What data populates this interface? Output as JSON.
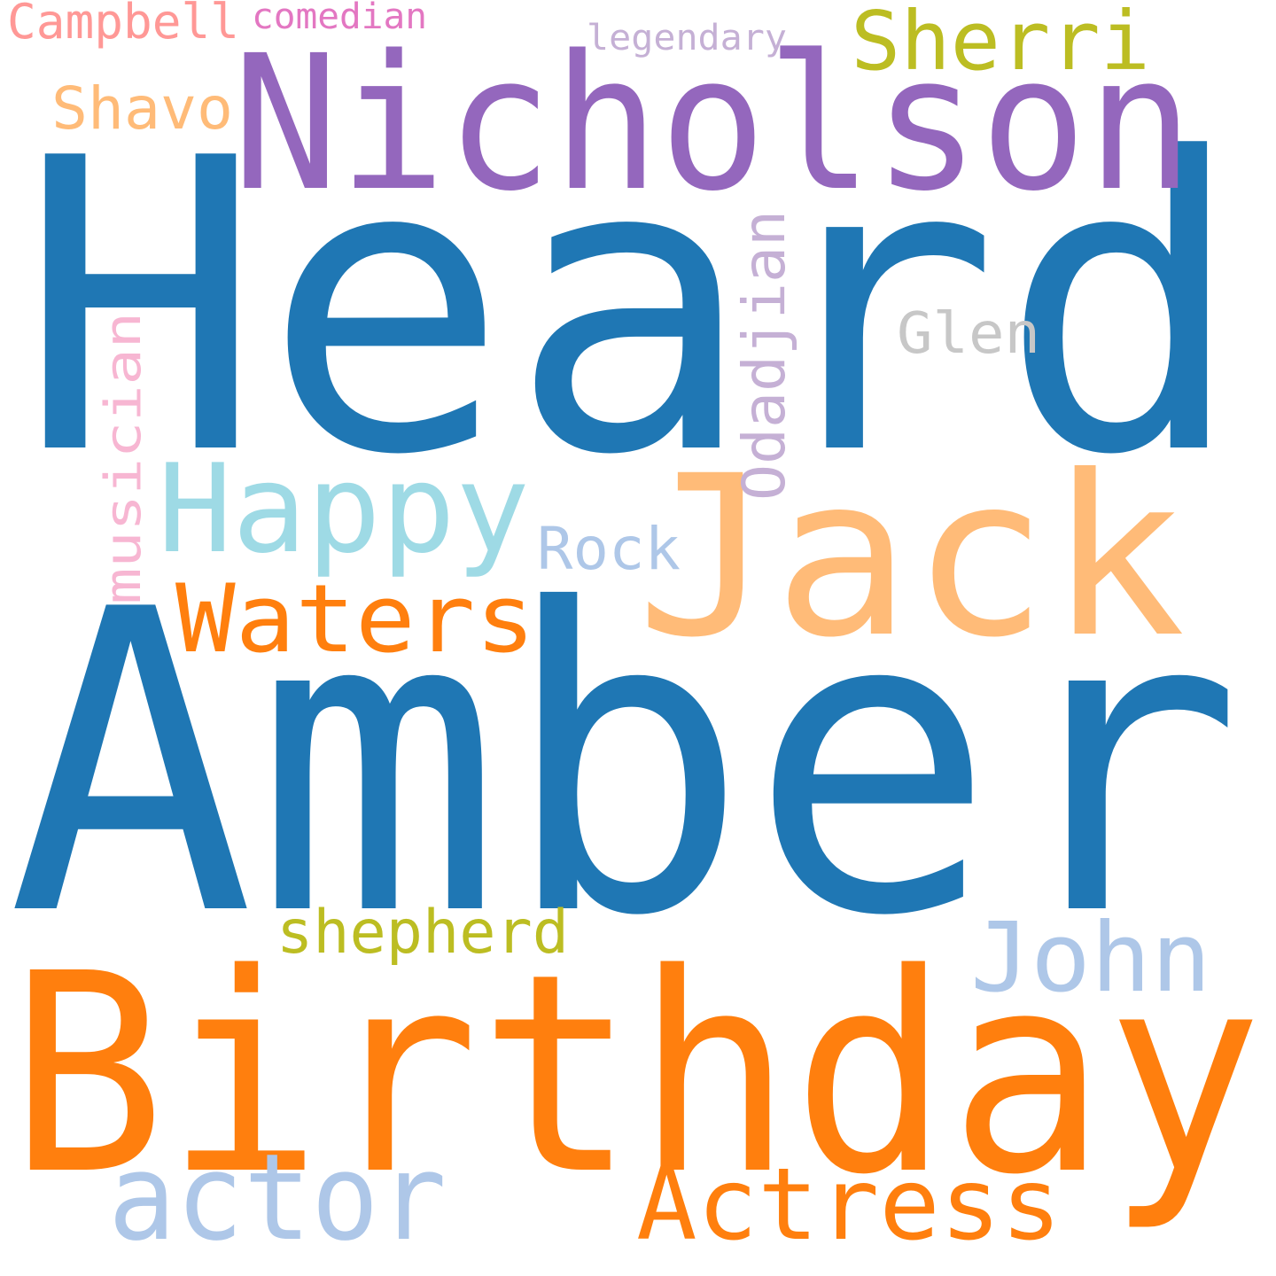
{
  "words": {
    "heard": {
      "text": "Heard",
      "color": "#1f77b4"
    },
    "amber": {
      "text": "Amber",
      "color": "#1f77b4"
    },
    "birthday": {
      "text": "Birthday",
      "color": "#ff7f0e"
    },
    "nicholson": {
      "text": "Nicholson",
      "color": "#9467bd"
    },
    "jack": {
      "text": "Jack",
      "color": "#ffbb78"
    },
    "happy": {
      "text": "Happy",
      "color": "#9edae5"
    },
    "waters": {
      "text": "Waters",
      "color": "#ff7f0e"
    },
    "actor": {
      "text": "actor",
      "color": "#aec7e8"
    },
    "actress": {
      "text": "Actress",
      "color": "#ff7f0e"
    },
    "john": {
      "text": "John",
      "color": "#aec7e8"
    },
    "sherri": {
      "text": "Sherri",
      "color": "#bcbd22"
    },
    "shepherd": {
      "text": "shepherd",
      "color": "#bcbd22"
    },
    "shavo": {
      "text": "Shavo",
      "color": "#ffbb78"
    },
    "odadjian": {
      "text": "Odadjian",
      "color": "#c5b0d5"
    },
    "musician": {
      "text": "musician",
      "color": "#f7b6d2"
    },
    "rock": {
      "text": "Rock",
      "color": "#aec7e8"
    },
    "glen": {
      "text": "Glen",
      "color": "#c7c7c7"
    },
    "campbell": {
      "text": "Campbell",
      "color": "#ff9896"
    },
    "comedian": {
      "text": "comedian",
      "color": "#e377c2"
    },
    "legendary": {
      "text": "legendary",
      "color": "#c5b0d5"
    }
  }
}
